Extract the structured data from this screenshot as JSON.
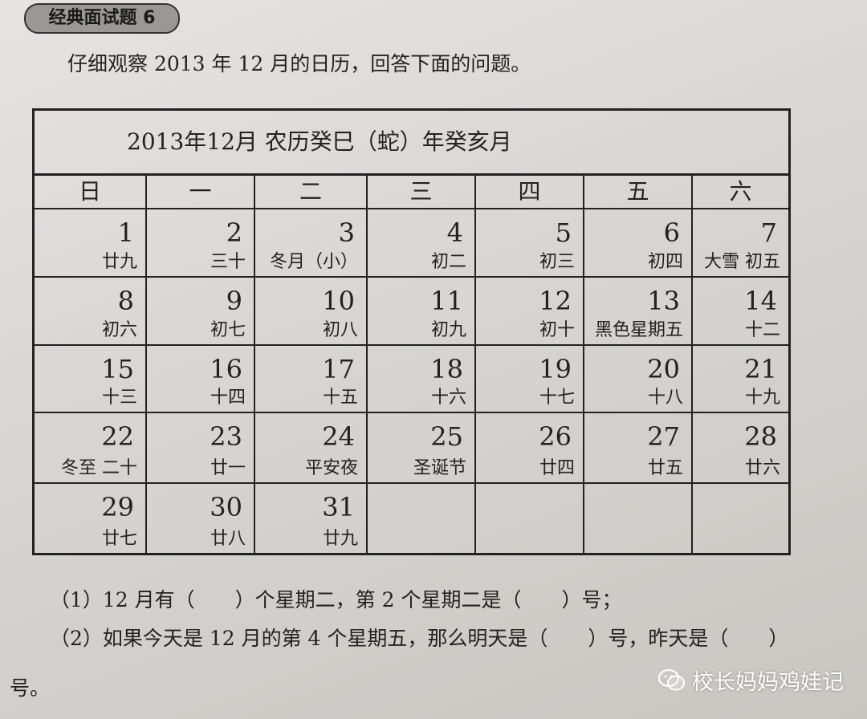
{
  "badge": "经典面试题 6",
  "intro": "仔细观察 2013 年 12 月的日历，回答下面的问题。",
  "calendar": {
    "title": "2013年12月  农历癸巳（蛇）年癸亥月",
    "weekdays": [
      "日",
      "一",
      "二",
      "三",
      "四",
      "五",
      "六"
    ],
    "weeks": [
      [
        {
          "d": "1",
          "l": "廿九"
        },
        {
          "d": "2",
          "l": "三十"
        },
        {
          "d": "3",
          "l": "冬月（小）"
        },
        {
          "d": "4",
          "l": "初二"
        },
        {
          "d": "5",
          "l": "初三"
        },
        {
          "d": "6",
          "l": "初四"
        },
        {
          "d": "7",
          "l": "大雪 初五"
        }
      ],
      [
        {
          "d": "8",
          "l": "初六"
        },
        {
          "d": "9",
          "l": "初七"
        },
        {
          "d": "10",
          "l": "初八"
        },
        {
          "d": "11",
          "l": "初九"
        },
        {
          "d": "12",
          "l": "初十"
        },
        {
          "d": "13",
          "l": "黑色星期五"
        },
        {
          "d": "14",
          "l": "十二"
        }
      ],
      [
        {
          "d": "15",
          "l": "十三"
        },
        {
          "d": "16",
          "l": "十四"
        },
        {
          "d": "17",
          "l": "十五"
        },
        {
          "d": "18",
          "l": "十六"
        },
        {
          "d": "19",
          "l": "十七"
        },
        {
          "d": "20",
          "l": "十八"
        },
        {
          "d": "21",
          "l": "十九"
        }
      ],
      [
        {
          "d": "22",
          "l": "冬至 二十"
        },
        {
          "d": "23",
          "l": "廿一"
        },
        {
          "d": "24",
          "l": "平安夜"
        },
        {
          "d": "25",
          "l": "圣诞节"
        },
        {
          "d": "26",
          "l": "廿四"
        },
        {
          "d": "27",
          "l": "廿五"
        },
        {
          "d": "28",
          "l": "廿六"
        }
      ],
      [
        {
          "d": "29",
          "l": "廿七"
        },
        {
          "d": "30",
          "l": "廿八"
        },
        {
          "d": "31",
          "l": "廿九"
        },
        {
          "d": "",
          "l": ""
        },
        {
          "d": "",
          "l": ""
        },
        {
          "d": "",
          "l": ""
        },
        {
          "d": "",
          "l": ""
        }
      ]
    ]
  },
  "questions": {
    "q1": "（1）12 月有（　　）个星期二，第 2 个星期二是（　　）号；",
    "q2": "（2）如果今天是 12 月的第 4 个星期五，那么明天是（　　）号，昨天是（　　）",
    "q2_end": "号。"
  },
  "watermark": {
    "icon": "wechat-icon",
    "text": "校长妈妈鸡娃记"
  }
}
